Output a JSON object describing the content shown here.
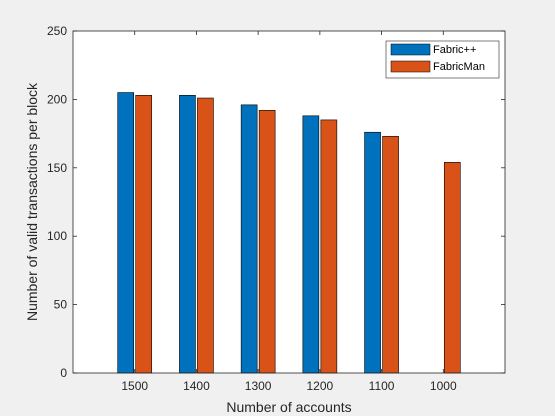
{
  "chart_data": {
    "type": "bar",
    "title": "",
    "xlabel": "Number of accounts",
    "ylabel": "Number of valid transactions per block",
    "categories": [
      "1500",
      "1400",
      "1300",
      "1200",
      "1100",
      "1000"
    ],
    "series": [
      {
        "name": "Fabric++",
        "values": [
          205,
          203,
          196,
          188,
          176,
          null
        ],
        "color": "#0072bd"
      },
      {
        "name": "FabricMan",
        "values": [
          203,
          201,
          192,
          185,
          173,
          154
        ],
        "color": "#d95319"
      }
    ],
    "ylim": [
      0,
      250
    ],
    "yticks": [
      0,
      50,
      100,
      150,
      200,
      250
    ],
    "grid": false,
    "legend_position": "top-right"
  }
}
